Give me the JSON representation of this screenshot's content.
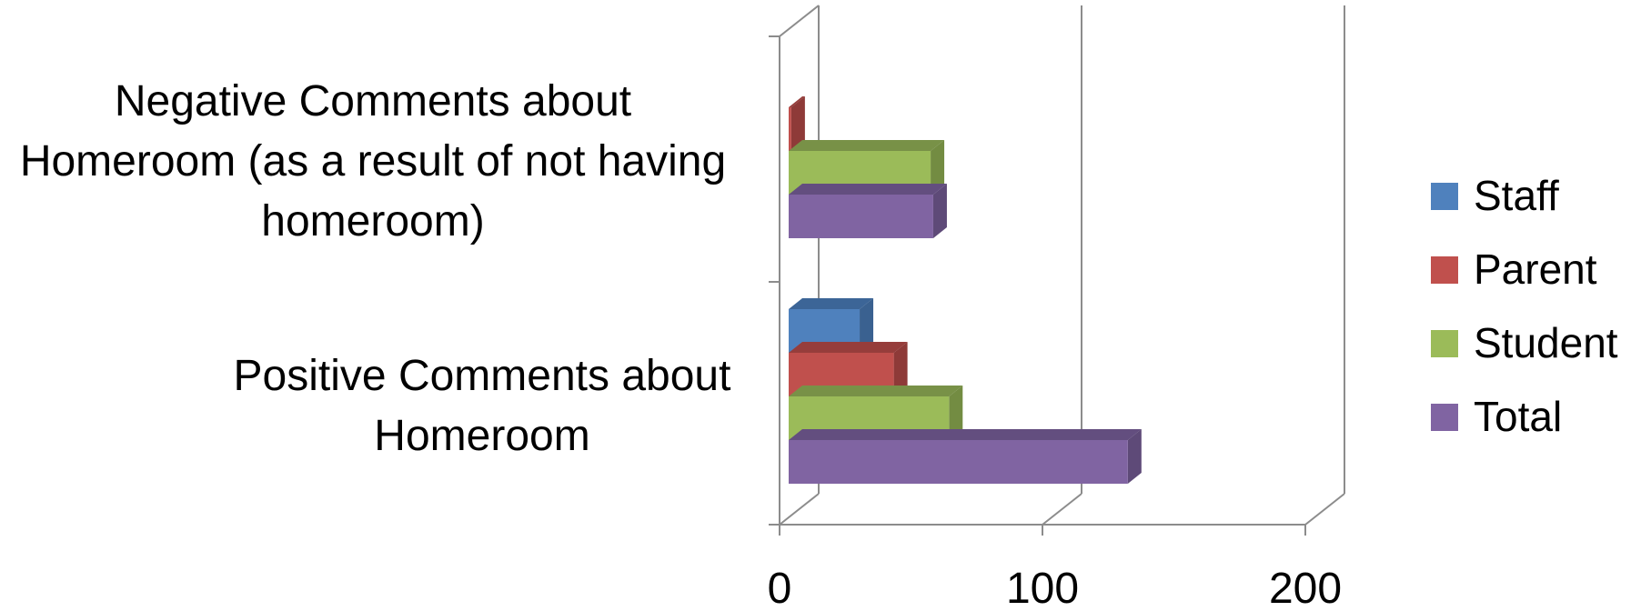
{
  "chart_data": {
    "type": "bar",
    "orientation": "horizontal",
    "three_d": true,
    "categories": [
      [
        "Negative Comments about",
        "Homeroom (as a result of not having",
        "homeroom)"
      ],
      [
        "Positive Comments about",
        "Homeroom"
      ]
    ],
    "series": [
      {
        "name": "Staff",
        "color": "#4F81BD",
        "side_color": "#3A6190",
        "top_color": "#3C6597",
        "values": [
          0,
          27
        ]
      },
      {
        "name": "Parent",
        "color": "#C0504D",
        "side_color": "#8E3A38",
        "top_color": "#963D3B",
        "values": [
          1,
          40
        ]
      },
      {
        "name": "Student",
        "color": "#9BBB59",
        "side_color": "#738C42",
        "top_color": "#789147",
        "values": [
          54,
          61
        ]
      },
      {
        "name": "Total",
        "color": "#8064A2",
        "side_color": "#5E4A78",
        "top_color": "#634E7F",
        "values": [
          55,
          129
        ]
      }
    ],
    "xlim": [
      0,
      200
    ],
    "x_ticks": [
      "0",
      "100",
      "200"
    ],
    "grid": true,
    "legend": "right",
    "title": "",
    "xlabel": "",
    "ylabel": ""
  }
}
